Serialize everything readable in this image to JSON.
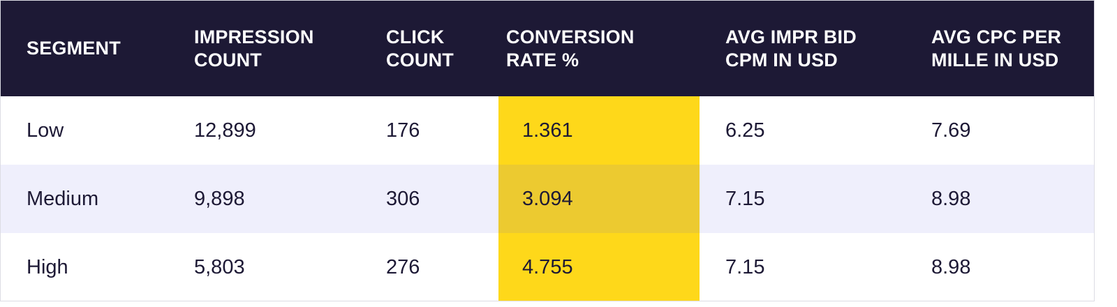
{
  "chart_data": {
    "type": "table",
    "columns": [
      "SEGMENT",
      "IMPRESSION COUNT",
      "CLICK COUNT",
      "CONVERSION RATE %",
      "AVG IMPR BID CPM IN USD",
      "AVG CPC PER MILLE IN USD"
    ],
    "header_lines": [
      [
        "SEGMENT"
      ],
      [
        "IMPRESSION",
        "COUNT"
      ],
      [
        "CLICK",
        "COUNT"
      ],
      [
        "CONVERSION",
        "RATE %"
      ],
      [
        "AVG IMPR BID",
        "CPM IN USD"
      ],
      [
        "AVG CPC PER",
        "MILLE IN USD"
      ]
    ],
    "rows": [
      [
        "Low",
        "12,899",
        "176",
        "1.361",
        "6.25",
        "7.69"
      ],
      [
        "Medium",
        "9,898",
        "306",
        "3.094",
        "7.15",
        "8.98"
      ],
      [
        "High",
        "5,803",
        "276",
        "4.755",
        "7.15",
        "8.98"
      ]
    ],
    "highlighted_column": 3
  },
  "colors": {
    "header_bg": "#1d1935",
    "header_text": "#ffffff",
    "body_text": "#1d1935",
    "alt_row_bg": "#efeffc",
    "highlight": "#fed81a",
    "highlight_on_alt": "#ecca30"
  }
}
